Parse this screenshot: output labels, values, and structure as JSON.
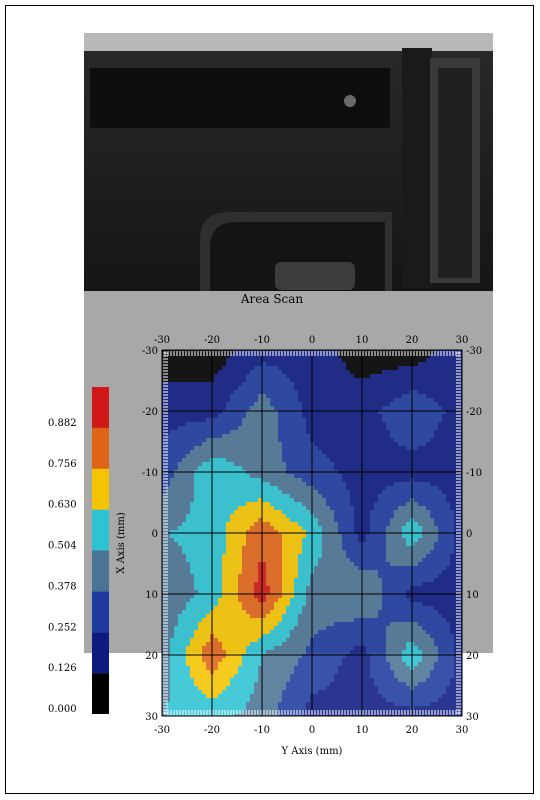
{
  "chart_data": {
    "type": "heatmap",
    "title": "Area Scan",
    "xlabel": "Y Axis (mm)",
    "ylabel": "X Axis (mm)",
    "x_axis_ticks": [
      "-30",
      "-20",
      "-10",
      "0",
      "10",
      "20",
      "30"
    ],
    "y_axis_ticks": [
      "-30",
      "-20",
      "-10",
      "0",
      "10",
      "20",
      "30"
    ],
    "x": [
      -30,
      -20,
      -10,
      0,
      10,
      20,
      30
    ],
    "y": [
      -30,
      -20,
      -10,
      0,
      10,
      20,
      30
    ],
    "xlim": [
      -30,
      30
    ],
    "ylim": [
      -30,
      30
    ],
    "y_inverted": true,
    "grid": true,
    "colorbar": {
      "ticks": [
        "0.000",
        "0.126",
        "0.252",
        "0.378",
        "0.504",
        "0.630",
        "0.756",
        "0.882"
      ],
      "bins": [
        0.0,
        0.126,
        0.252,
        0.378,
        0.504,
        0.63,
        0.756,
        0.882,
        1.0
      ],
      "colors": [
        "#000000",
        "#0d1a80",
        "#1e3a9e",
        "#4b7394",
        "#2ec3d2",
        "#f5c400",
        "#e06418",
        "#d01818"
      ]
    },
    "z_rows_by_y": [
      [
        0.05,
        0.05,
        0.2,
        0.2,
        0.05,
        0.05,
        0.2
      ],
      [
        0.2,
        0.2,
        0.45,
        0.2,
        0.2,
        0.35,
        0.2
      ],
      [
        0.3,
        0.6,
        0.45,
        0.3,
        0.2,
        0.2,
        0.2
      ],
      [
        0.5,
        0.55,
        0.85,
        0.6,
        0.2,
        0.6,
        0.2
      ],
      [
        0.4,
        0.55,
        0.95,
        0.45,
        0.5,
        0.2,
        0.2
      ],
      [
        0.45,
        0.85,
        0.5,
        0.35,
        0.2,
        0.6,
        0.2
      ],
      [
        0.5,
        0.55,
        0.45,
        0.2,
        0.2,
        0.2,
        0.2
      ]
    ]
  },
  "background": {
    "alt": "device photo behind scan"
  }
}
